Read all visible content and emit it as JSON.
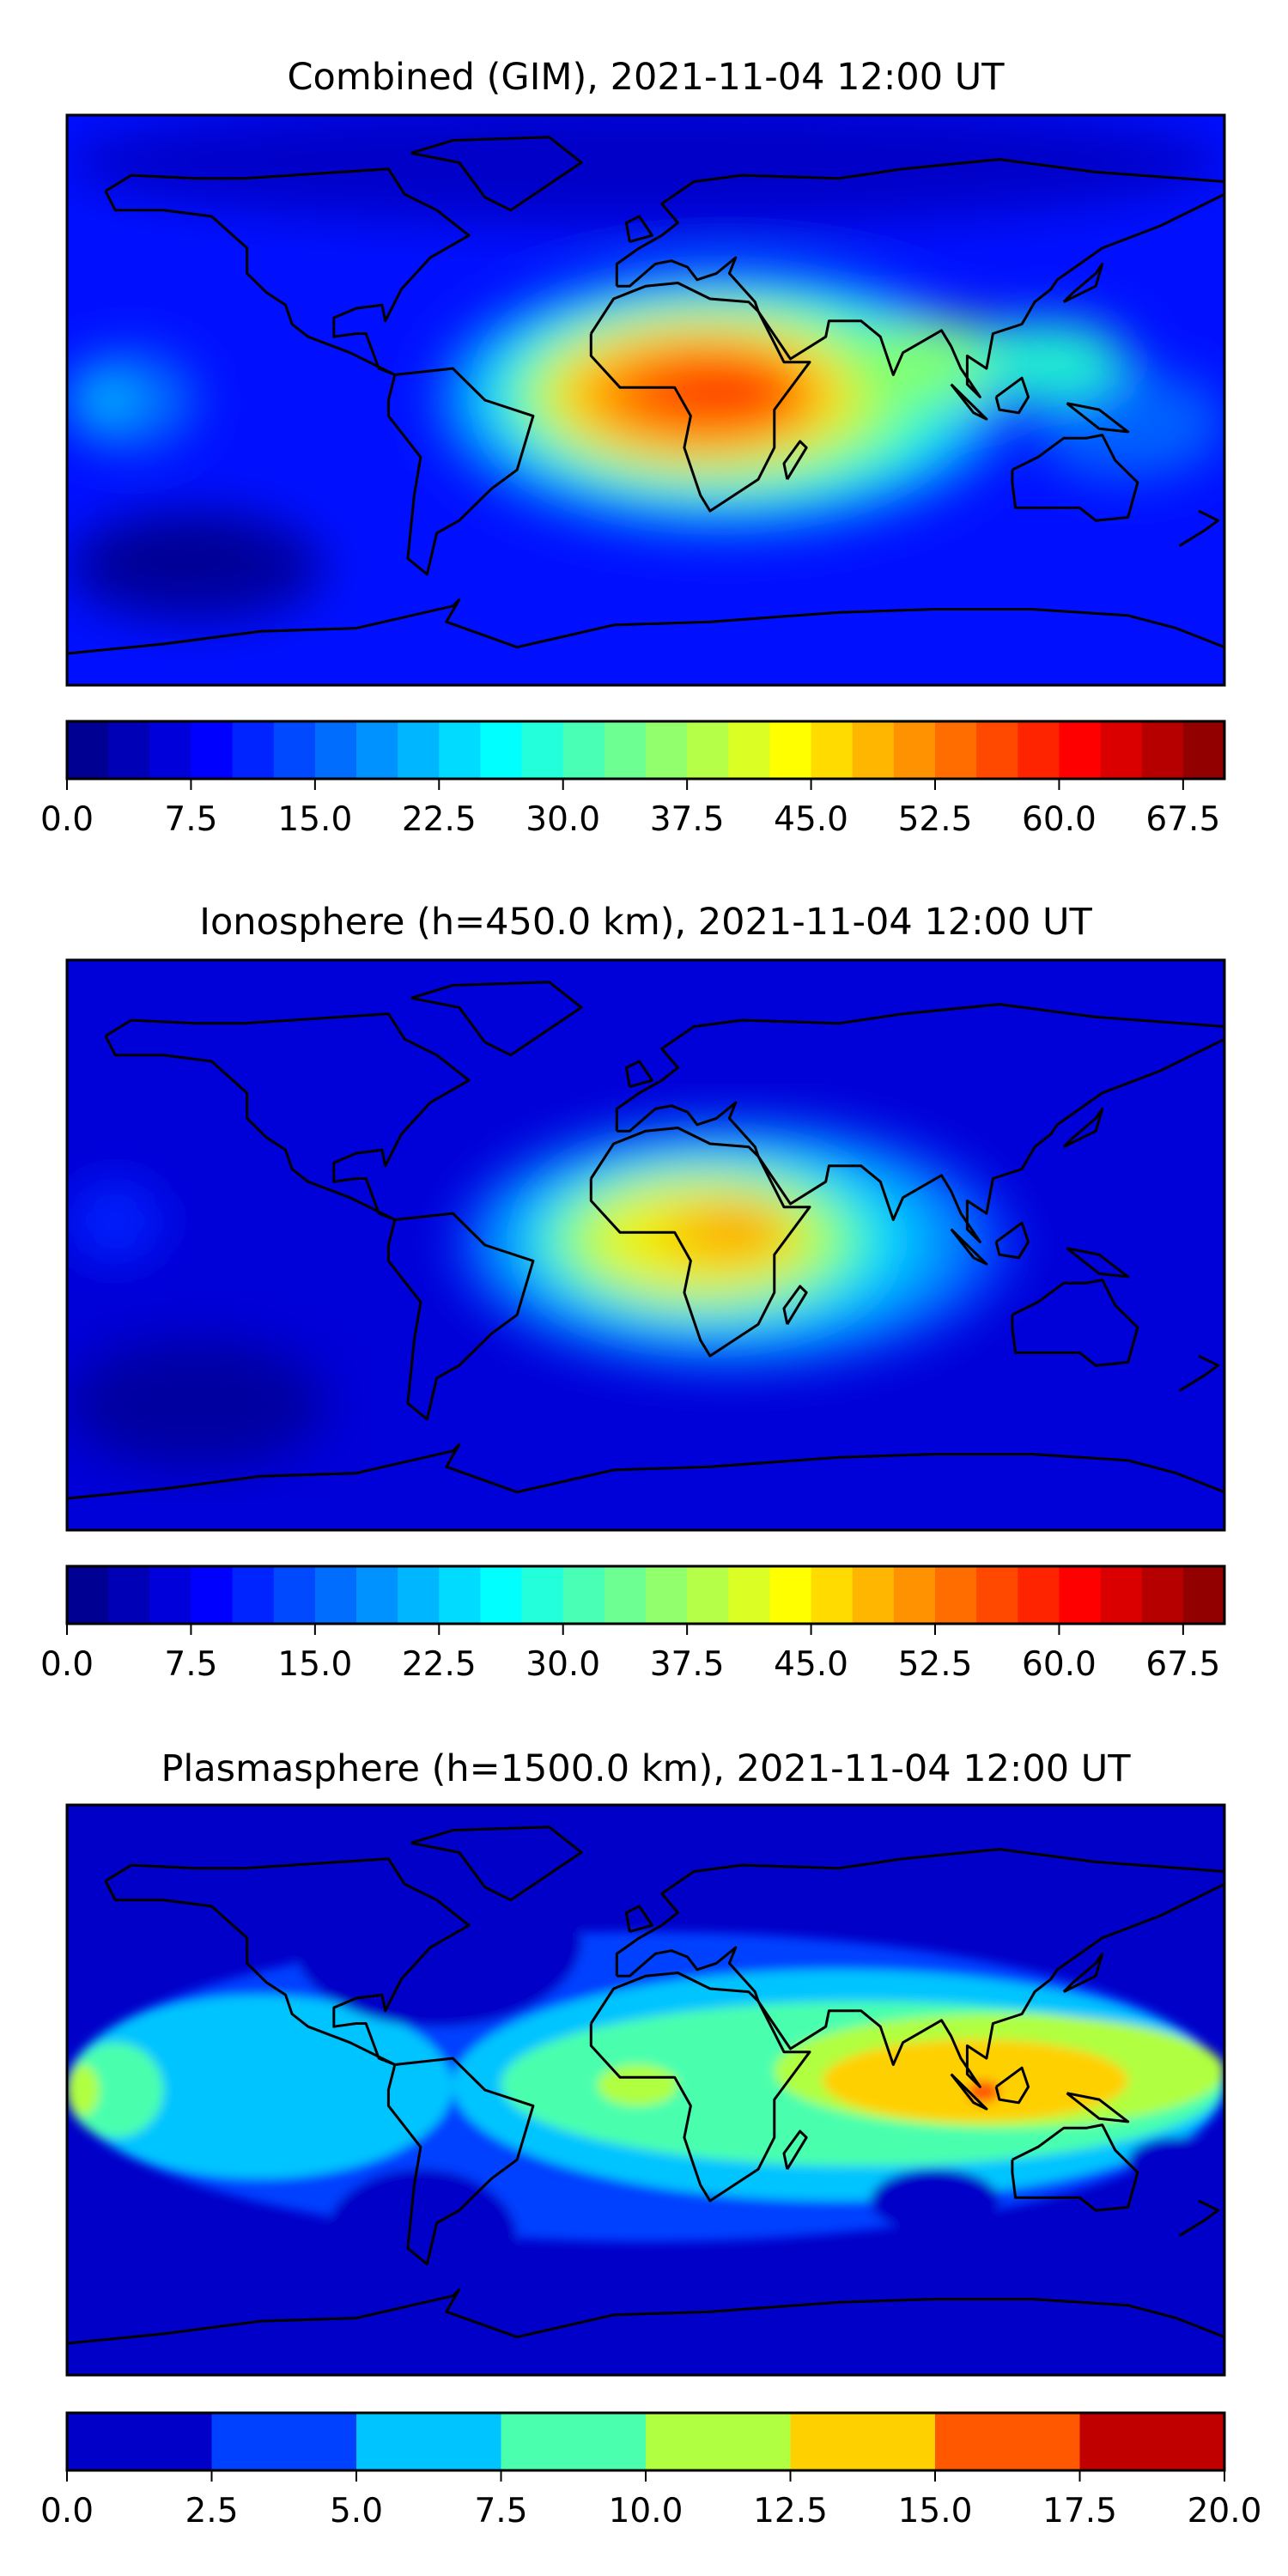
{
  "chart_data": [
    {
      "type": "heatmap",
      "title": "Combined (GIM), 2021-11-04 12:00 UT",
      "projection": "PlateCarree world map with coastlines",
      "colormap": "jet",
      "colorbar": {
        "min": 0,
        "max": 70,
        "step": 2.5,
        "ticks": [
          "0.0",
          "7.5",
          "15.0",
          "22.5",
          "30.0",
          "37.5",
          "45.0",
          "52.5",
          "60.0",
          "67.5"
        ]
      },
      "peak_region": "Africa / Arabia, max approx 62.5"
    },
    {
      "type": "heatmap",
      "title": "Ionosphere  (h=450.0 km), 2021-11-04 12:00 UT",
      "projection": "PlateCarree world map with coastlines",
      "colormap": "jet",
      "colorbar": {
        "min": 0,
        "max": 70,
        "step": 2.5,
        "ticks": [
          "0.0",
          "7.5",
          "15.0",
          "22.5",
          "30.0",
          "37.5",
          "45.0",
          "52.5",
          "60.0",
          "67.5"
        ]
      },
      "peak_region": "Horn of Africa, max approx 50"
    },
    {
      "type": "heatmap",
      "title": "Plasmasphere (h=1500.0 km), 2021-11-04 12:00 UT",
      "projection": "PlateCarree world map with coastlines",
      "colormap": "jet",
      "colorbar": {
        "min": 0,
        "max": 20,
        "step": 2.5,
        "ticks": [
          "0.0",
          "2.5",
          "5.0",
          "7.5",
          "10.0",
          "12.5",
          "15.0",
          "17.5",
          "20.0"
        ],
        "colors": [
          "#0000c8",
          "#0040ff",
          "#00c4ff",
          "#4affae",
          "#b0ff40",
          "#ffd000",
          "#ff5800",
          "#c00000"
        ]
      },
      "peak_region": "Indonesia / South-East Asia, max approx 15"
    }
  ]
}
